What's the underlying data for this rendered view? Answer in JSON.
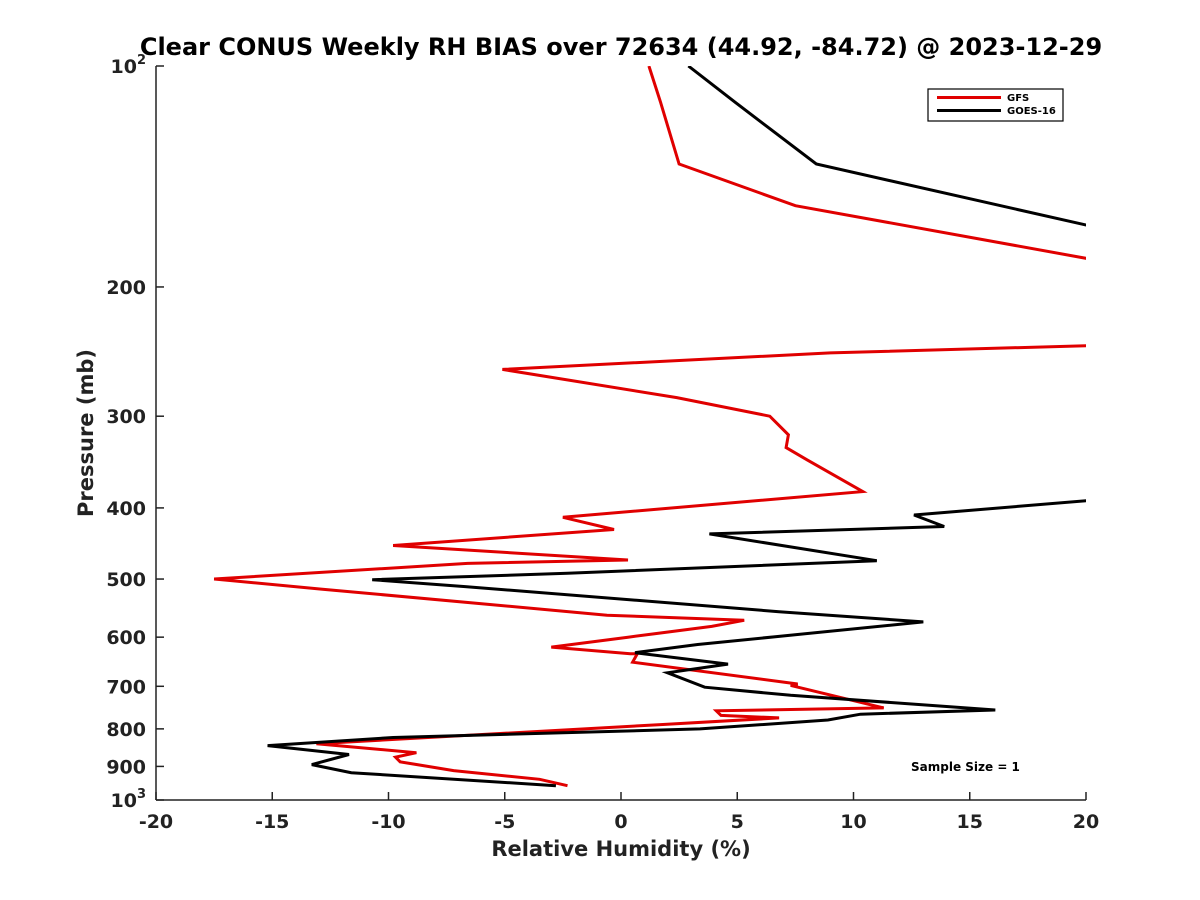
{
  "chart_data": {
    "type": "line",
    "title": "Clear CONUS Weekly RH BIAS over 72634 (44.92, -84.72) @ 2023-12-29",
    "xlabel": "Relative Humidity (%)",
    "ylabel": "Pressure (mb)",
    "xlim": [
      -20,
      20
    ],
    "ylim": [
      100,
      1000
    ],
    "yscale": "log",
    "y_reversed": true,
    "x_ticks": [
      -20,
      -15,
      -10,
      -5,
      0,
      5,
      10,
      15,
      20
    ],
    "x_tick_labels": [
      "-20",
      "-15",
      "-10",
      "-5",
      "0",
      "5",
      "10",
      "15",
      "20"
    ],
    "y_ticks": [
      100,
      200,
      300,
      400,
      500,
      600,
      700,
      800,
      900,
      1000
    ],
    "y_tick_labels": [
      {
        "base": "10",
        "exp": "2"
      },
      {
        "base": "200",
        "exp": ""
      },
      {
        "base": "300",
        "exp": ""
      },
      {
        "base": "400",
        "exp": ""
      },
      {
        "base": "500",
        "exp": ""
      },
      {
        "base": "600",
        "exp": ""
      },
      {
        "base": "700",
        "exp": ""
      },
      {
        "base": "800",
        "exp": ""
      },
      {
        "base": "900",
        "exp": ""
      },
      {
        "base": "10",
        "exp": "3"
      }
    ],
    "legend_position": "top-right",
    "series": [
      {
        "name": "GFS",
        "color": "#e00000",
        "x": [
          1.2,
          1.7,
          2.5,
          7.5,
          20.5,
          null,
          21,
          9,
          -5.1,
          2.4,
          6.4,
          7.2,
          7.2,
          7.1,
          8.0,
          10.4,
          -2.5,
          -0.3,
          -9.8,
          0.3,
          -6.6,
          -17.5,
          -12.9,
          -0.6,
          5.3,
          3.9,
          0.3,
          -3.0,
          0.4,
          0.7,
          0.5,
          7.6,
          7.3,
          11.3,
          4.1,
          4.3,
          6.8,
          1.8,
          -13.1,
          -8.8,
          -9.7,
          -9.5,
          -7.2,
          -3.5,
          -2.3
        ],
        "y": [
          100,
          112,
          136,
          155,
          184,
          null,
          240,
          246,
          259,
          283,
          300,
          318,
          318,
          331,
          344,
          380,
          412,
          428,
          450,
          471,
          476,
          500,
          516,
          560,
          569,
          580,
          600,
          619,
          632,
          632,
          649,
          695,
          698,
          749,
          756,
          767,
          773,
          789,
          838,
          862,
          874,
          887,
          912,
          937,
          956
        ]
      },
      {
        "name": "GOES-16",
        "color": "#000000",
        "x": [
          2.9,
          4.9,
          8.4,
          20.5,
          null,
          20.5,
          12.6,
          13.9,
          3.8,
          11.0,
          -2.3,
          -10.7,
          -6.7,
          6.8,
          13.0,
          3.3,
          0.6,
          4.6,
          2.0,
          3.6,
          7.3,
          16.1,
          10.3,
          8.9,
          3.4,
          -9.8,
          -15.2,
          -11.7,
          -13.3,
          -11.6,
          -2.8
        ],
        "y": [
          100,
          112,
          136,
          166,
          null,
          390,
          409,
          424,
          434,
          472,
          491,
          501,
          512,
          554,
          572,
          614,
          630,
          653,
          671,
          702,
          720,
          754,
          764,
          778,
          800,
          822,
          843,
          867,
          895,
          918,
          956
        ]
      }
    ],
    "annotation": "Sample Size = 1"
  }
}
